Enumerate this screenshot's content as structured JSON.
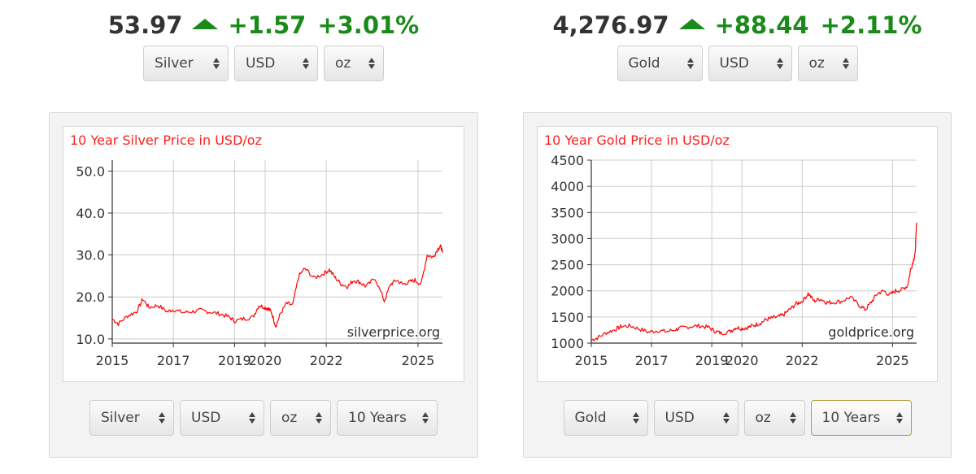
{
  "silver": {
    "ticker": {
      "price": "53.97",
      "change": "+1.57",
      "change_pct": "+3.01%"
    },
    "top_selectors": {
      "metal": "Silver",
      "currency": "USD",
      "unit": "oz"
    },
    "bottom_selectors": {
      "metal": "Silver",
      "currency": "USD",
      "unit": "oz",
      "period": "10 Years"
    },
    "arrow_icon": "triangle-up-icon"
  },
  "gold": {
    "ticker": {
      "price": "4,276.97",
      "change": "+88.44",
      "change_pct": "+2.11%"
    },
    "top_selectors": {
      "metal": "Gold",
      "currency": "USD",
      "unit": "oz"
    },
    "bottom_selectors": {
      "metal": "Gold",
      "currency": "USD",
      "unit": "oz",
      "period": "10 Years"
    },
    "arrow_icon": "triangle-up-icon"
  },
  "colors": {
    "up": "#1a8a1a",
    "line": "#ff0000",
    "title": "#ff2020",
    "grid": "#cccccc"
  },
  "chart_data": [
    {
      "type": "line",
      "title": "10 Year Silver Price in USD/oz",
      "watermark": "silverprice.org",
      "xlabel": "",
      "ylabel": "",
      "xlim": [
        2015,
        2025.8
      ],
      "ylim": [
        9,
        52.6
      ],
      "x_ticks": [
        2015,
        2017,
        2019,
        2020,
        2022,
        2025
      ],
      "x_tick_labels": [
        "2015",
        "2017",
        "2019",
        "2020",
        "2022",
        "2025"
      ],
      "y_ticks": [
        10,
        20,
        30,
        40,
        50
      ],
      "y_tick_labels": [
        "10.0",
        "20.0",
        "30.0",
        "40.0",
        "50.0"
      ],
      "grid": true,
      "series": [
        {
          "x": [
            2015.0,
            2015.2,
            2015.5,
            2015.8,
            2016.0,
            2016.2,
            2016.5,
            2016.8,
            2017.0,
            2017.3,
            2017.6,
            2017.9,
            2018.2,
            2018.5,
            2018.8,
            2019.0,
            2019.3,
            2019.6,
            2019.8,
            2020.0,
            2020.1,
            2020.2,
            2020.35,
            2020.5,
            2020.7,
            2020.9,
            2021.1,
            2021.3,
            2021.6,
            2021.9,
            2022.1,
            2022.3,
            2022.5,
            2022.7,
            2022.9,
            2023.1,
            2023.3,
            2023.6,
            2023.9,
            2024.1,
            2024.3,
            2024.5,
            2024.7,
            2024.9,
            2025.1,
            2025.3,
            2025.5,
            2025.65,
            2025.75,
            2025.8
          ],
          "y": [
            14.8,
            13.6,
            15.5,
            16.5,
            19.5,
            17.5,
            18.0,
            16.5,
            17.0,
            16.3,
            16.5,
            16.8,
            16.4,
            16.0,
            15.3,
            14.3,
            14.8,
            15.2,
            18.0,
            17.5,
            17.2,
            16.5,
            13.0,
            16.0,
            18.5,
            18.0,
            25.0,
            26.8,
            24.5,
            25.5,
            26.5,
            24.5,
            23.0,
            22.5,
            24.0,
            23.5,
            22.5,
            24.5,
            19.0,
            23.0,
            24.0,
            23.0,
            23.5,
            24.0,
            23.0,
            30.0,
            29.5,
            31.5,
            32.0,
            30.5
          ]
        }
      ]
    },
    {
      "type": "line",
      "title": "10 Year Gold Price in USD/oz",
      "watermark": "goldprice.org",
      "xlabel": "",
      "ylabel": "",
      "xlim": [
        2015,
        2025.8
      ],
      "ylim": [
        1000,
        4500
      ],
      "x_ticks": [
        2015,
        2017,
        2019,
        2020,
        2022,
        2025
      ],
      "x_tick_labels": [
        "2015",
        "2017",
        "2019",
        "2020",
        "2022",
        "2025"
      ],
      "y_ticks": [
        1000,
        1500,
        2000,
        2500,
        3000,
        3500,
        4000,
        4500
      ],
      "y_tick_labels": [
        "1000",
        "1500",
        "2000",
        "2500",
        "3000",
        "3500",
        "4000",
        "4500"
      ],
      "grid": true,
      "series": [
        {
          "x": [
            2015.0,
            2015.2,
            2015.5,
            2015.8,
            2016.0,
            2016.3,
            2016.6,
            2016.9,
            2017.2,
            2017.5,
            2017.8,
            2018.0,
            2018.3,
            2018.6,
            2018.9,
            2019.1,
            2019.3,
            2019.6,
            2019.8,
            2020.0,
            2020.2,
            2020.4,
            2020.6,
            2020.8,
            2021.0,
            2021.2,
            2021.4,
            2021.6,
            2021.8,
            2022.0,
            2022.2,
            2022.4,
            2022.6,
            2022.8,
            2023.0,
            2023.3,
            2023.6,
            2023.9,
            2024.1,
            2024.3,
            2024.5,
            2024.7,
            2024.9,
            2025.1,
            2025.3,
            2025.5,
            2025.6,
            2025.7,
            2025.75,
            2025.8
          ],
          "y": [
            1060,
            1100,
            1200,
            1260,
            1320,
            1330,
            1270,
            1210,
            1240,
            1220,
            1260,
            1290,
            1320,
            1330,
            1300,
            1230,
            1190,
            1220,
            1300,
            1280,
            1300,
            1340,
            1380,
            1450,
            1480,
            1500,
            1550,
            1650,
            1750,
            1800,
            1950,
            1800,
            1850,
            1780,
            1780,
            1800,
            1880,
            1720,
            1640,
            1790,
            1950,
            2000,
            1920,
            2000,
            2020,
            2100,
            2400,
            2600,
            2700,
            3300
          ]
        }
      ]
    }
  ]
}
